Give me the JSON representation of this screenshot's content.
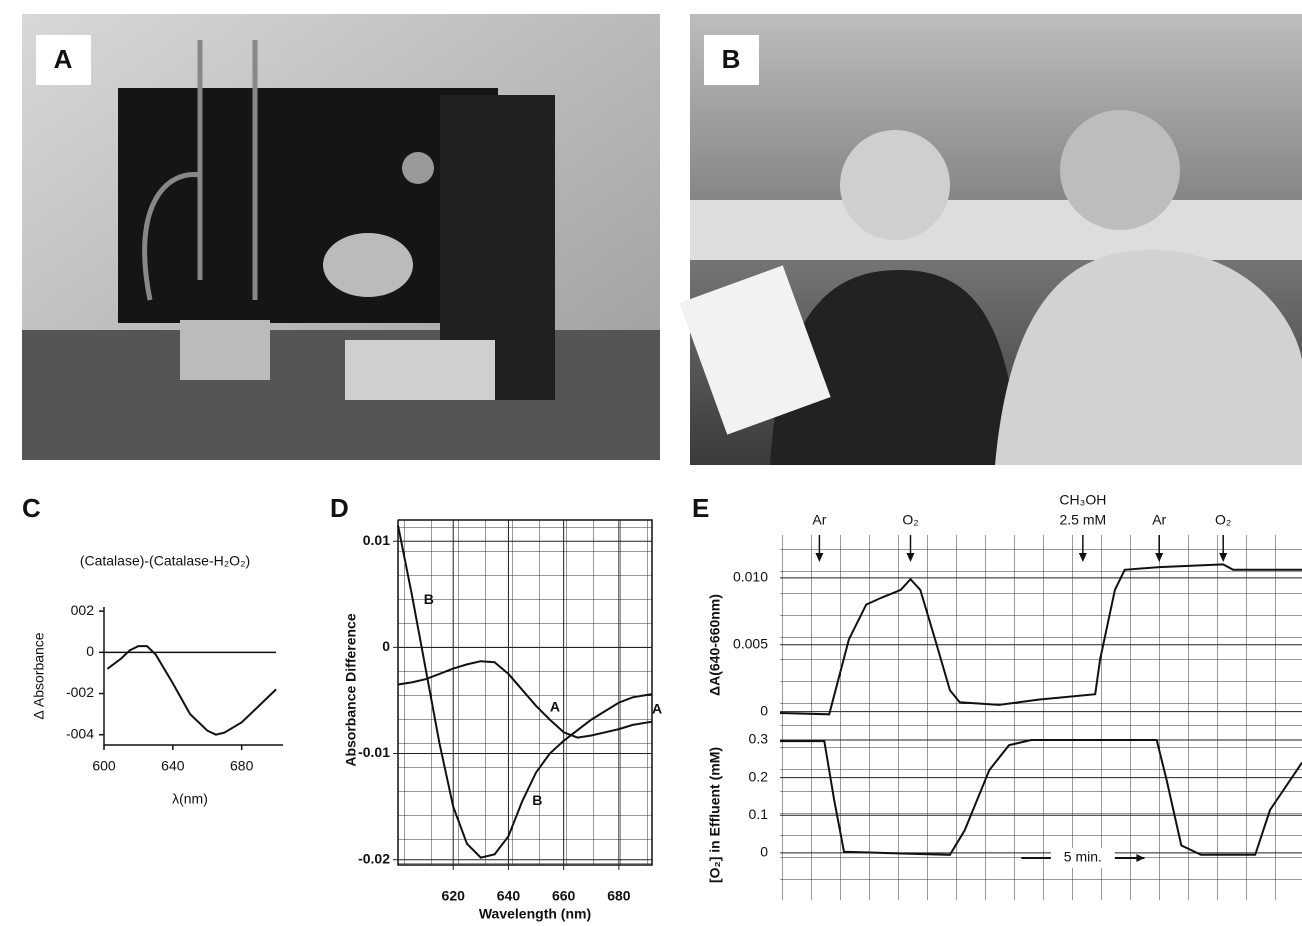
{
  "photos": [
    {
      "label": "A"
    },
    {
      "label": "B"
    }
  ],
  "chart_data": [
    {
      "type": "line",
      "panel": "C",
      "title": "(Catalase)-(Catalase-H₂O₂)",
      "xlabel": "λ(nm)",
      "ylabel": "Δ Absorbance",
      "xlim": [
        600,
        704
      ],
      "ylim": [
        -0.0045,
        0.0022
      ],
      "xticks": [
        600,
        640,
        680
      ],
      "yticks": [
        {
          "value": 0.002,
          "label": "002"
        },
        0,
        {
          "value": -0.002,
          "label": "-002"
        },
        {
          "value": -0.004,
          "label": "-004"
        }
      ],
      "reference_line": 0,
      "x": [
        602,
        610,
        615,
        620,
        625,
        630,
        640,
        650,
        660,
        665,
        670,
        680,
        690,
        700
      ],
      "series": [
        {
          "color": "#111111",
          "values": [
            -0.0008,
            -0.0003,
            0.0001,
            0.0003,
            0.0003,
            -0.0001,
            -0.0015,
            -0.003,
            -0.0038,
            -0.004,
            -0.0039,
            -0.0034,
            -0.0026,
            -0.0018
          ]
        }
      ]
    },
    {
      "type": "line",
      "panel": "D",
      "xlabel": "Wavelength (nm)",
      "ylabel": "Absorbance Difference",
      "xlim": [
        600,
        692
      ],
      "ylim": [
        -0.0205,
        0.012
      ],
      "xticks": [
        620,
        640,
        660,
        680
      ],
      "yticks": [
        0.01,
        0,
        -0.01,
        -0.02
      ],
      "x": [
        600,
        605,
        610,
        615,
        620,
        625,
        630,
        635,
        640,
        645,
        650,
        655,
        660,
        665,
        670,
        675,
        680,
        685,
        692
      ],
      "series": [
        {
          "name": "A",
          "color": "#111111",
          "values": [
            -0.0035,
            -0.0033,
            -0.003,
            -0.0025,
            -0.002,
            -0.0016,
            -0.0013,
            -0.0014,
            -0.0025,
            -0.004,
            -0.0055,
            -0.0068,
            -0.008,
            -0.0085,
            -0.0083,
            -0.008,
            -0.0077,
            -0.0073,
            -0.007
          ]
        },
        {
          "name": "B",
          "color": "#111111",
          "values": [
            0.0115,
            0.005,
            -0.002,
            -0.009,
            -0.015,
            -0.0185,
            -0.0198,
            -0.0195,
            -0.0178,
            -0.0145,
            -0.0118,
            -0.01,
            -0.0088,
            -0.0078,
            -0.0068,
            -0.006,
            -0.0052,
            -0.0047,
            -0.0044
          ]
        }
      ]
    },
    {
      "type": "timecourse",
      "panel": "E",
      "xlim": [
        0,
        21.2
      ],
      "events": [
        {
          "label": "Ar",
          "x": 1.6
        },
        {
          "label": "O₂",
          "x": 5.3
        },
        {
          "label": "CH₃OH",
          "sublabel": "2.5 mM",
          "x": 12.3
        },
        {
          "label": "Ar",
          "x": 15.4
        },
        {
          "label": "O₂",
          "x": 18.0
        }
      ],
      "scale_bar": {
        "label": "5 min.",
        "start": 9.8,
        "end": 14.8
      },
      "subplots": [
        {
          "ylabel": "ΔA(640-660nm)",
          "ylim": [
            -0.001,
            0.0132
          ],
          "yticks": [
            {
              "value": 0.01,
              "label": "0.010"
            },
            0.005,
            0
          ],
          "x": [
            0,
            2.0,
            2.8,
            3.5,
            4.1,
            4.9,
            5.3,
            5.7,
            6.3,
            6.9,
            7.3,
            8.9,
            10.5,
            12.8,
            13.0,
            13.6,
            14.0,
            15.4,
            18.0,
            18.4,
            21.2
          ],
          "values": [
            -0.0001,
            -0.0002,
            0.0054,
            0.008,
            0.0085,
            0.0091,
            0.0099,
            0.0091,
            0.0054,
            0.0016,
            0.0007,
            0.0005,
            0.0009,
            0.0013,
            0.0039,
            0.0091,
            0.0106,
            0.0108,
            0.011,
            0.0106,
            0.0106
          ]
        },
        {
          "ylabel": "[O₂] in Effluent (mM)",
          "ylim": [
            -0.125,
            0.3265
          ],
          "yticks": [
            0.3,
            0.2,
            0.1,
            0
          ],
          "x": [
            0,
            1.8,
            2.2,
            2.6,
            6.9,
            7.5,
            8.5,
            9.3,
            10.2,
            15.3,
            15.7,
            16.3,
            17.1,
            19.3,
            19.9,
            21.2
          ],
          "values": [
            0.297,
            0.297,
            0.14,
            0.003,
            -0.005,
            0.06,
            0.22,
            0.286,
            0.3,
            0.3,
            0.194,
            0.02,
            -0.005,
            -0.005,
            0.114,
            0.24
          ]
        }
      ]
    }
  ]
}
